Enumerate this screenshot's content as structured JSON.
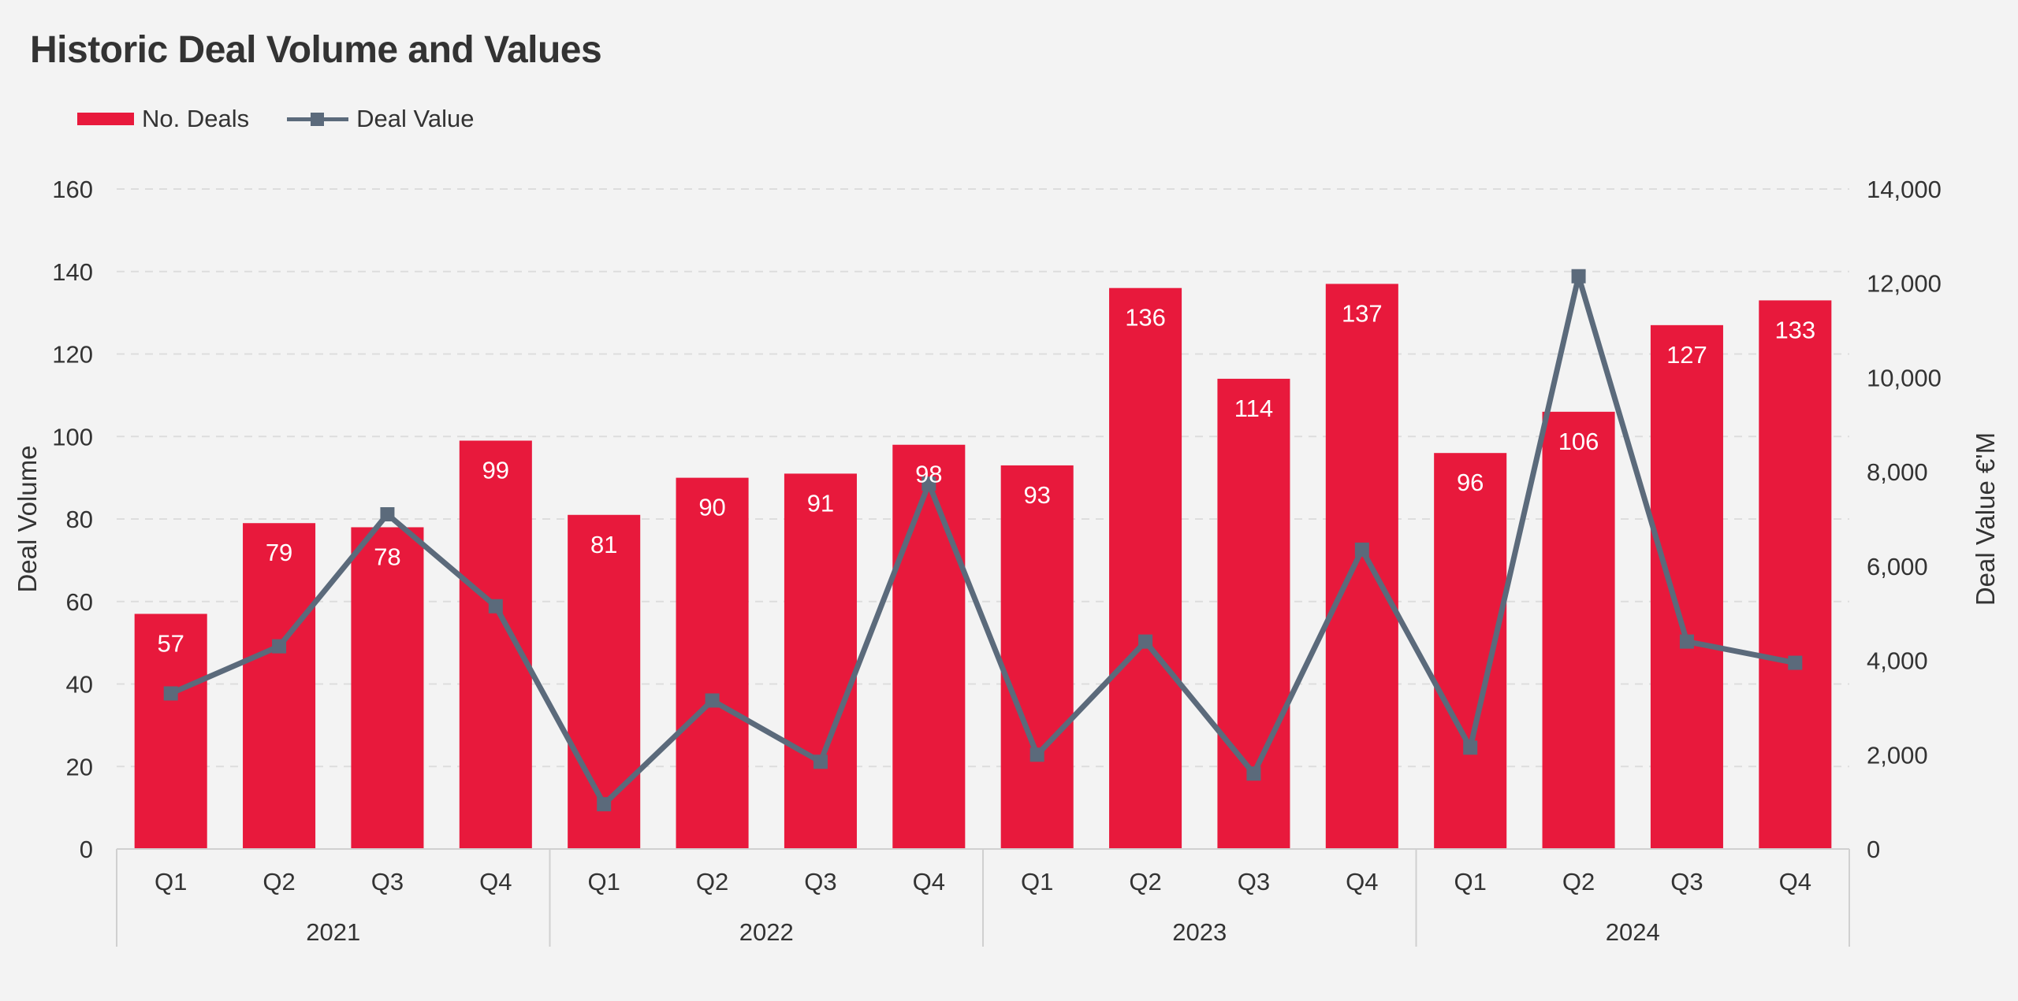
{
  "chart_data": {
    "type": "bar",
    "title": "Historic Deal Volume and Values",
    "categories": [
      "Q1",
      "Q2",
      "Q3",
      "Q4",
      "Q1",
      "Q2",
      "Q3",
      "Q4",
      "Q1",
      "Q2",
      "Q3",
      "Q4",
      "Q1",
      "Q2",
      "Q3",
      "Q4"
    ],
    "groups": [
      {
        "label": "2021",
        "span": 4
      },
      {
        "label": "2022",
        "span": 4
      },
      {
        "label": "2023",
        "span": 4
      },
      {
        "label": "2024",
        "span": 4
      }
    ],
    "series": [
      {
        "name": "No. Deals",
        "type": "bar",
        "axis": "left",
        "values": [
          57,
          79,
          78,
          99,
          81,
          90,
          91,
          98,
          93,
          136,
          114,
          137,
          96,
          106,
          127,
          133
        ],
        "data_labels": true
      },
      {
        "name": "Deal Value",
        "type": "line",
        "axis": "right",
        "values": [
          3300,
          4300,
          7100,
          5150,
          950,
          3150,
          1850,
          7750,
          2000,
          4400,
          1600,
          6350,
          2150,
          12150,
          4400,
          3950
        ]
      }
    ],
    "ylabel": "Deal Volume",
    "ylim": [
      0,
      160
    ],
    "yticks": [
      0,
      20,
      40,
      60,
      80,
      100,
      120,
      140,
      160
    ],
    "ytick_labels": [
      "0",
      "20",
      "40",
      "60",
      "80",
      "100",
      "120",
      "140",
      "160"
    ],
    "y2label": "Deal Value €'M",
    "y2lim": [
      0,
      14000
    ],
    "y2ticks": [
      0,
      2000,
      4000,
      6000,
      8000,
      10000,
      12000,
      14000
    ],
    "y2tick_labels": [
      "0",
      "2,000",
      "4,000",
      "6,000",
      "8,000",
      "10,000",
      "12,000",
      "14,000"
    ],
    "grid": true,
    "legend_position": "top-left",
    "colors": {
      "bars": "#e8193c",
      "line": "#5b6a7b",
      "grid": "#dddddd",
      "axis": "#d0d0d0",
      "background": "#f3f3f3"
    }
  }
}
